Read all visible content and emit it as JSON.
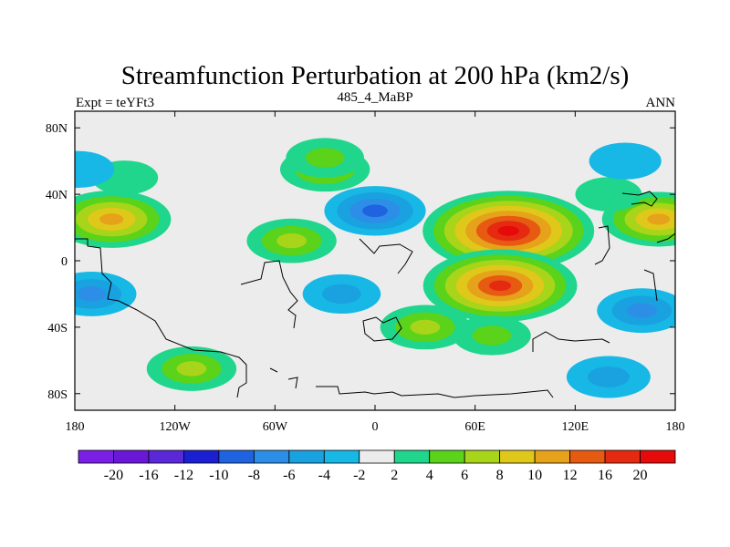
{
  "chart_data": {
    "type": "heatmap",
    "title": "Streamfunction Perturbation at 200 hPa (km2/s)",
    "left_label": "Expt = teYFt3",
    "center_label": "485_4_MaBP",
    "right_label": "ANN",
    "x_ticks": [
      {
        "value": -180,
        "label": "180"
      },
      {
        "value": -120,
        "label": "120W"
      },
      {
        "value": -60,
        "label": "60W"
      },
      {
        "value": 0,
        "label": "0"
      },
      {
        "value": 60,
        "label": "60E"
      },
      {
        "value": 120,
        "label": "120E"
      },
      {
        "value": 180,
        "label": "180"
      }
    ],
    "y_ticks": [
      {
        "value": 80,
        "label": "80N"
      },
      {
        "value": 40,
        "label": "40N"
      },
      {
        "value": 0,
        "label": "0"
      },
      {
        "value": -40,
        "label": "40S"
      },
      {
        "value": -80,
        "label": "80S"
      }
    ],
    "xlim": [
      -180,
      180
    ],
    "ylim": [
      -90,
      90
    ],
    "contour_levels": [
      -20,
      -16,
      -12,
      -10,
      -8,
      -6,
      -4,
      -2,
      2,
      4,
      6,
      8,
      10,
      12,
      16,
      20
    ],
    "colorbar_labels": [
      "-20",
      "-16",
      "-12",
      "-10",
      "-8",
      "-6",
      "-4",
      "-2",
      "2",
      "4",
      "6",
      "8",
      "10",
      "12",
      "16",
      "20"
    ],
    "colors": [
      "#7a1fe6",
      "#6a17d8",
      "#5a28d8",
      "#1a20d2",
      "#1f63e0",
      "#2c8ee6",
      "#1aa2e0",
      "#17b8e6",
      "#ececec",
      "#1fd68c",
      "#5ad31a",
      "#a8d41a",
      "#e0c81a",
      "#e6a21a",
      "#e65a12",
      "#e62a12",
      "#e60a0a"
    ],
    "features": [
      {
        "lon": 80,
        "lat": 18,
        "value": 20,
        "description_free": true
      },
      {
        "lon": 75,
        "lat": -15,
        "value": 17
      },
      {
        "lon": -158,
        "lat": 25,
        "value": 11
      },
      {
        "lon": 170,
        "lat": 25,
        "value": 10
      },
      {
        "lon": -30,
        "lat": 55,
        "value": 6
      },
      {
        "lon": -50,
        "lat": 12,
        "value": 6
      },
      {
        "lon": -110,
        "lat": -65,
        "value": 6
      },
      {
        "lon": 30,
        "lat": -40,
        "value": 6
      },
      {
        "lon": 70,
        "lat": -45,
        "value": 4
      },
      {
        "lon": -30,
        "lat": 62,
        "value": 4
      },
      {
        "lon": -150,
        "lat": 50,
        "value": 2
      },
      {
        "lon": 140,
        "lat": 40,
        "value": 2
      },
      {
        "lon": 0,
        "lat": 30,
        "value": -8
      },
      {
        "lon": -170,
        "lat": -20,
        "value": -6
      },
      {
        "lon": 160,
        "lat": -30,
        "value": -6
      },
      {
        "lon": 140,
        "lat": -70,
        "value": -5
      },
      {
        "lon": -20,
        "lat": -20,
        "value": -4
      },
      {
        "lon": 150,
        "lat": 60,
        "value": -3
      },
      {
        "lon": -178,
        "lat": 55,
        "value": -3
      }
    ]
  }
}
